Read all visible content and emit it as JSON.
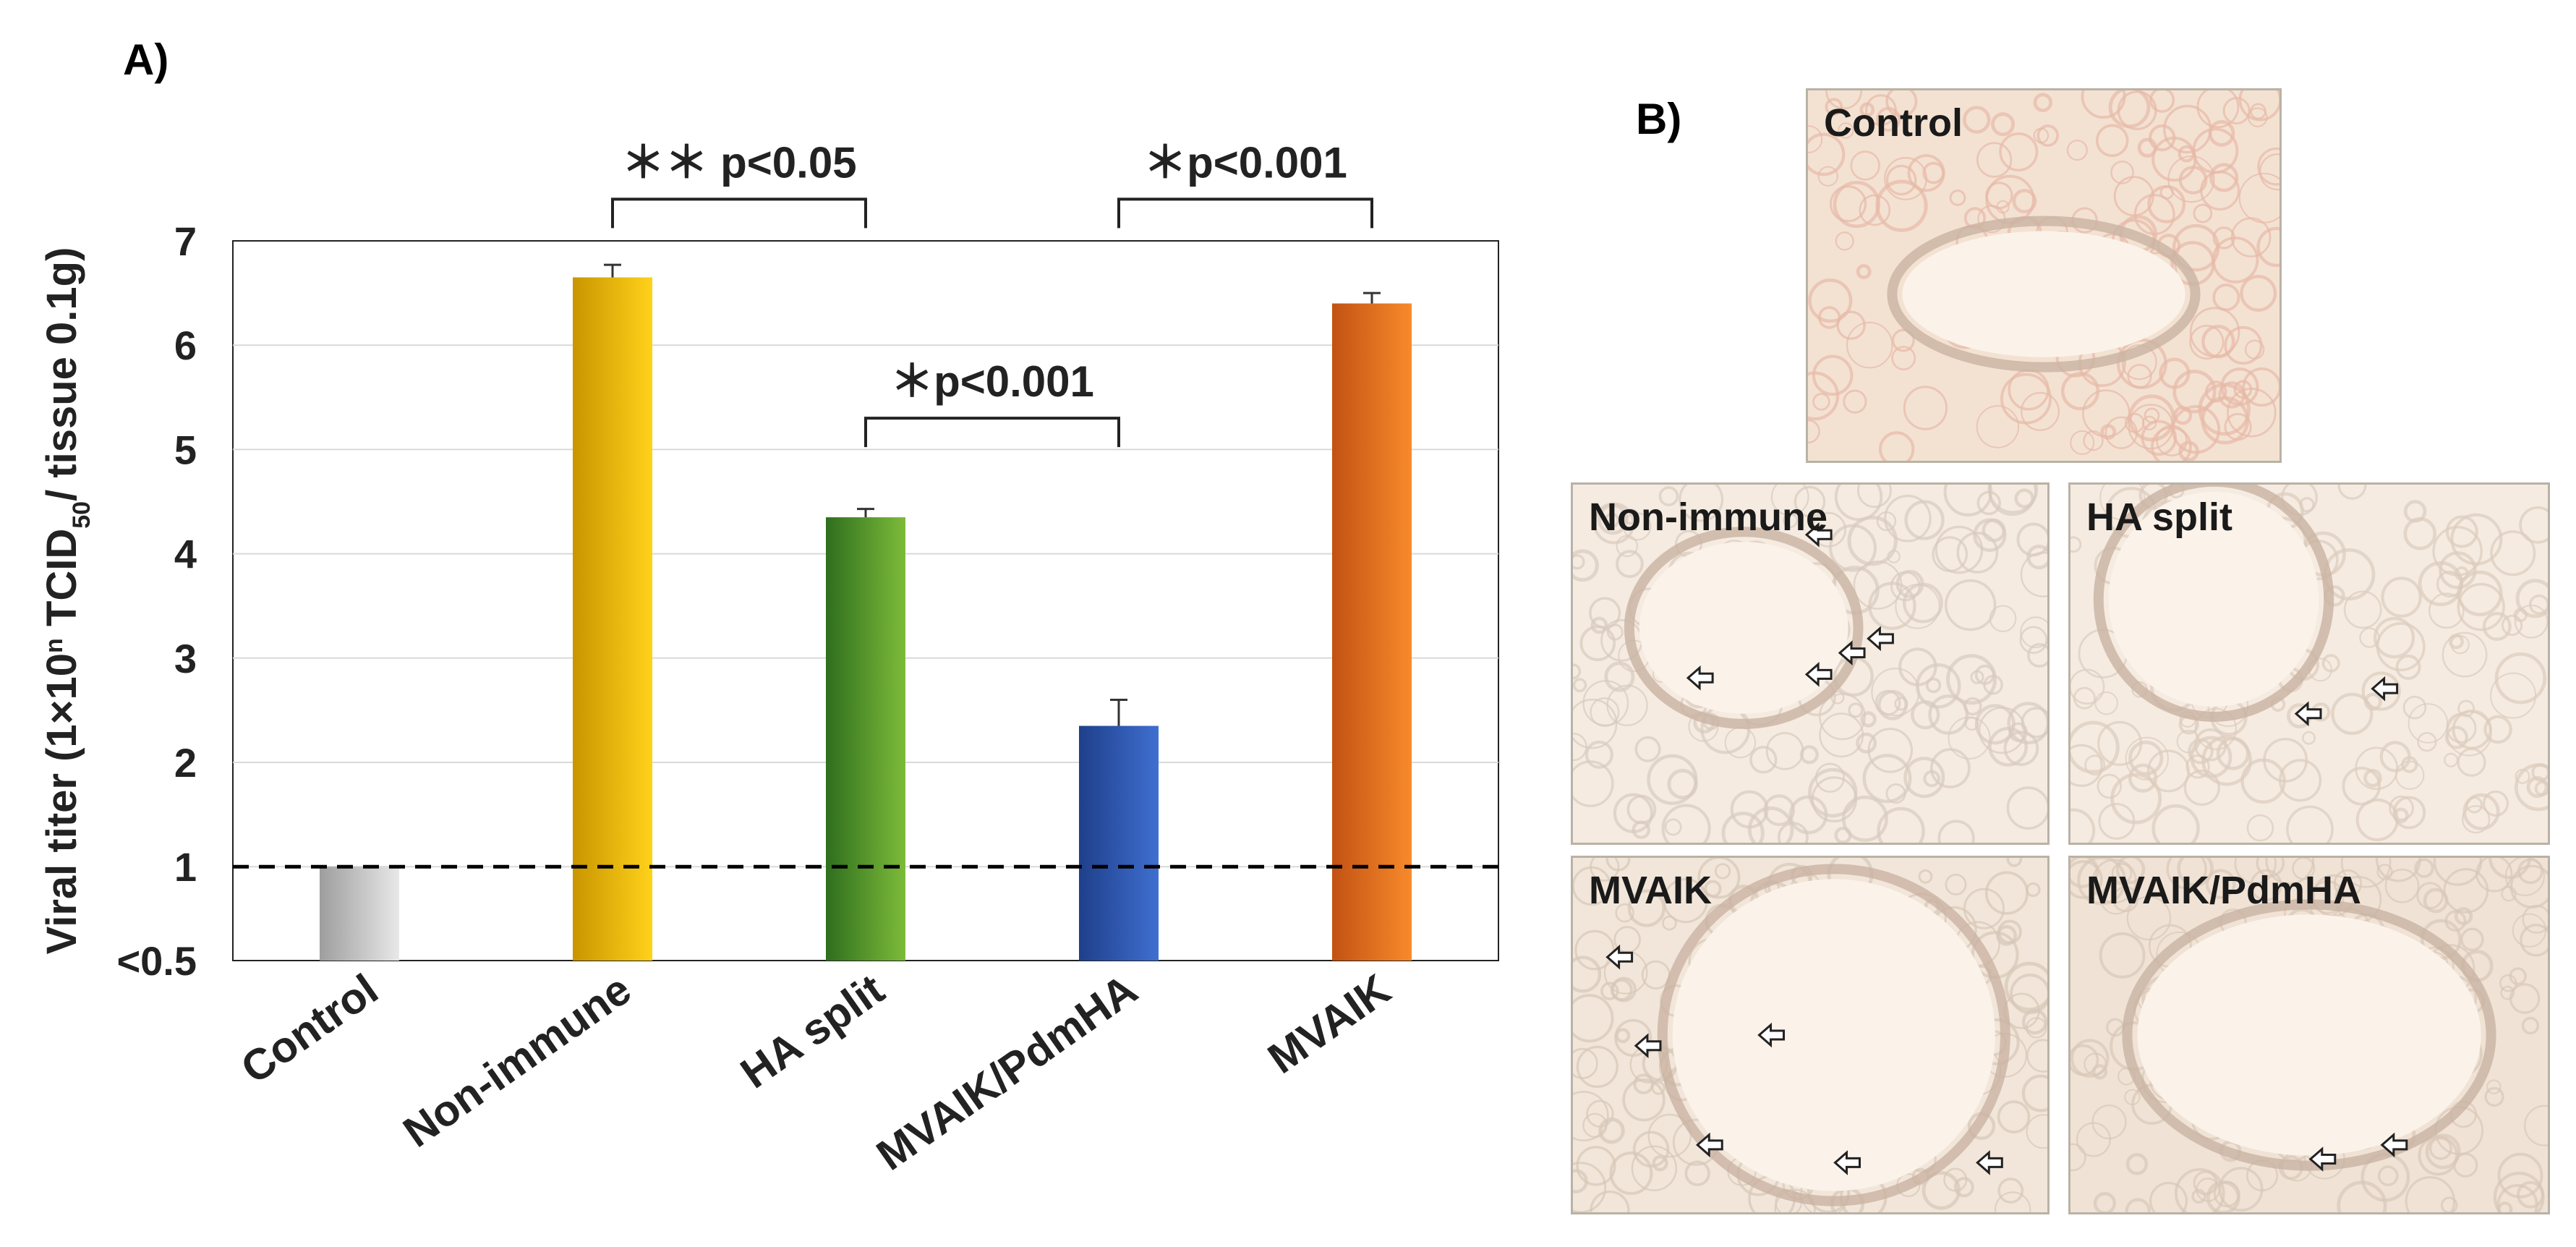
{
  "panel_a_label": "A)",
  "panel_b_label": "B)",
  "chart_data": {
    "type": "bar",
    "ylabel_parts": [
      "Viral titer (1",
      "×",
      "10",
      "n",
      " TCID",
      "50",
      "/ tissue 0.1g)"
    ],
    "categories": [
      "Control",
      "Non-immune",
      "HA split",
      "MVAIK/PdmHA",
      "MVAIK"
    ],
    "values": [
      1.0,
      6.65,
      4.35,
      2.35,
      6.4
    ],
    "errors": [
      0,
      0.12,
      0.08,
      0.25,
      0.1
    ],
    "colors": [
      [
        "#9e9e9e",
        "#e8e8e8"
      ],
      [
        "#c99500",
        "#ffd21a"
      ],
      [
        "#2f6e1e",
        "#7dbb3a"
      ],
      [
        "#1f3f8a",
        "#3f6fd0"
      ],
      [
        "#c25212",
        "#f88a2c"
      ]
    ],
    "yticks": [
      "<0.5",
      "1",
      "2",
      "3",
      "4",
      "5",
      "6",
      "7"
    ],
    "ylim": [
      0.1,
      7
    ],
    "threshold": 1,
    "grid": true,
    "significance": [
      {
        "from": 1,
        "to": 2,
        "level": 7.4,
        "label": "＊＊ p<0.05"
      },
      {
        "from": 2,
        "to": 3,
        "level": 5.3,
        "label": "＊p<0.001"
      },
      {
        "from": 3,
        "to": 4,
        "level": 7.4,
        "label": "＊p<0.001"
      }
    ]
  },
  "panels": [
    {
      "label": "Control",
      "arrows": []
    },
    {
      "label": "Non-immune",
      "arrows": []
    },
    {
      "label": "HA split",
      "arrows": []
    },
    {
      "label": "MVAIK",
      "arrows": []
    },
    {
      "label": "MVAIK/PdmHA",
      "arrows": []
    }
  ]
}
